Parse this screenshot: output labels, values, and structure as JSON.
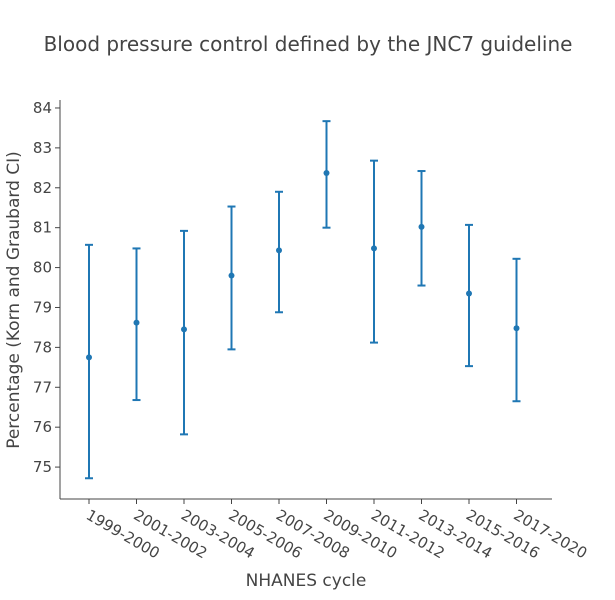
{
  "chart_data": {
    "type": "scatter",
    "title": "Blood pressure control defined by the JNC7 guideline",
    "xlabel": "NHANES cycle",
    "ylabel": "Percentage (Korn and Graubard CI)",
    "categories": [
      "1999-2000",
      "2001-2002",
      "2003-2004",
      "2005-2006",
      "2007-2008",
      "2009-2010",
      "2011-2012",
      "2013-2014",
      "2015-2016",
      "2017-2020"
    ],
    "values": [
      77.75,
      78.62,
      78.45,
      79.8,
      80.43,
      82.37,
      80.48,
      81.02,
      79.35,
      78.48
    ],
    "ci_lower": [
      74.72,
      76.68,
      75.82,
      77.95,
      78.88,
      81.0,
      78.12,
      79.55,
      77.53,
      76.65
    ],
    "ci_upper": [
      80.57,
      80.48,
      80.92,
      81.53,
      81.9,
      83.67,
      82.68,
      82.42,
      81.07,
      80.22
    ],
    "yticks": [
      75,
      76,
      77,
      78,
      79,
      80,
      81,
      82,
      83,
      84
    ],
    "ylim": [
      74.2,
      84.2
    ],
    "grid": false,
    "color": "#1f77b4"
  }
}
